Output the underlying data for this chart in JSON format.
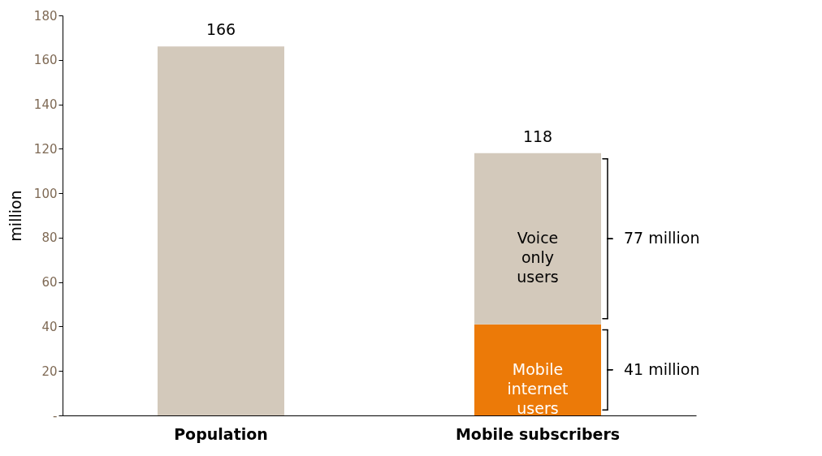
{
  "chart_data": {
    "type": "bar",
    "stacked": true,
    "categories": [
      "Population",
      "Mobile subscribers"
    ],
    "series": [
      {
        "color": "#d3c9bb",
        "values": [
          166,
          null
        ]
      },
      {
        "name": "Mobile internet users",
        "color": "#ec7a08",
        "values": [
          null,
          41
        ]
      },
      {
        "name": "Voice only users",
        "color": "#d3c9bb",
        "values": [
          null,
          77
        ]
      }
    ],
    "totals": [
      "166",
      "118"
    ],
    "annotations": [
      "77 million",
      "41 million"
    ],
    "ylabel": "million",
    "ylim": [
      0,
      180
    ],
    "yticks": [
      {
        "value": 0,
        "label": "-"
      },
      20,
      40,
      60,
      80,
      100,
      120,
      140,
      160,
      180
    ],
    "grid": false
  }
}
